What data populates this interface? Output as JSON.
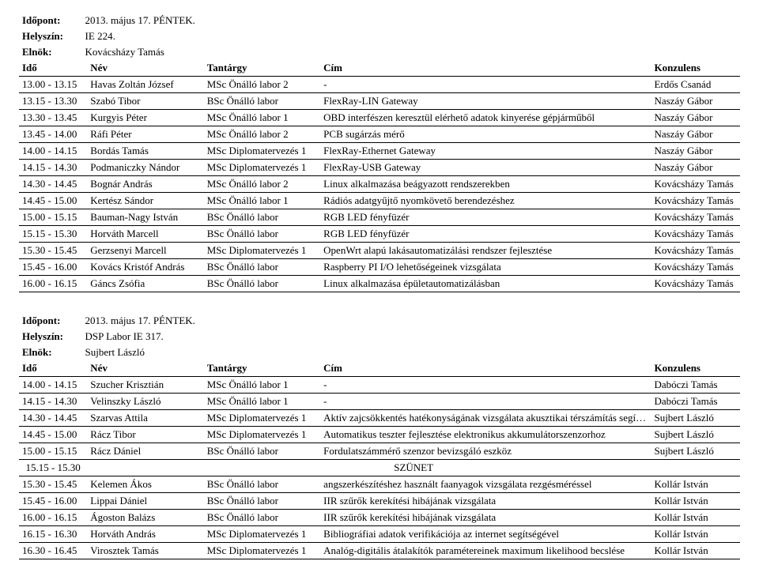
{
  "labels": {
    "idopont": "Időpont:",
    "helyszin": "Helyszín:",
    "elnok": "Elnök:",
    "ido_h": "Idő",
    "nev_h": "Név",
    "tantargy_h": "Tantárgy",
    "cim_h": "Cím",
    "konzulens_h": "Konzulens",
    "szunet": "SZÜNET"
  },
  "sessions": [
    {
      "idopont": "2013. május 17. PÉNTEK.",
      "helyszin": "IE 224.",
      "elnok": "Kovácsházy Tamás",
      "rows": [
        {
          "ido": "13.00 - 13.15",
          "nev": "Havas Zoltán József",
          "tantargy": "MSc Önálló labor 2",
          "cim": "-",
          "konzulens": "Erdős Csanád"
        },
        {
          "ido": "13.15 - 13.30",
          "nev": "Szabó Tibor",
          "tantargy": "BSc Önálló labor",
          "cim": "FlexRay-LIN Gateway",
          "konzulens": "Naszáy Gábor"
        },
        {
          "ido": "13.30 - 13.45",
          "nev": "Kurgyis Péter",
          "tantargy": "MSc Önálló labor 1",
          "cim": "OBD interfészen keresztül elérhető adatok kinyerése gépjárműből",
          "konzulens": "Naszáy Gábor"
        },
        {
          "ido": "13.45 - 14.00",
          "nev": "Ráfi Péter",
          "tantargy": "MSc Önálló labor 2",
          "cim": "PCB sugárzás mérő",
          "konzulens": "Naszáy Gábor"
        },
        {
          "ido": "14.00 - 14.15",
          "nev": "Bordás Tamás",
          "tantargy": "MSc Diplomatervezés 1",
          "cim": "FlexRay-Ethernet Gateway",
          "konzulens": "Naszáy Gábor"
        },
        {
          "ido": "14.15 - 14.30",
          "nev": "Podmaniczky Nándor",
          "tantargy": "MSc Diplomatervezés 1",
          "cim": "FlexRay-USB Gateway",
          "konzulens": "Naszáy Gábor"
        },
        {
          "ido": "14.30 - 14.45",
          "nev": "Bognár András",
          "tantargy": "MSc Önálló labor 2",
          "cim": "Linux alkalmazása beágyazott rendszerekben",
          "konzulens": "Kovácsházy Tamás"
        },
        {
          "ido": "14.45 - 15.00",
          "nev": "Kertész Sándor",
          "tantargy": "MSc Önálló labor 1",
          "cim": "Rádiós adatgyűjtő nyomkövető berendezéshez",
          "konzulens": "Kovácsházy Tamás"
        },
        {
          "ido": "15.00 - 15.15",
          "nev": "Bauman-Nagy István",
          "tantargy": "BSc Önálló labor",
          "cim": "RGB LED fényfüzér",
          "konzulens": "Kovácsházy Tamás"
        },
        {
          "ido": "15.15 - 15.30",
          "nev": "Horváth Marcell",
          "tantargy": "BSc Önálló labor",
          "cim": "RGB LED fényfüzér",
          "konzulens": "Kovácsházy Tamás"
        },
        {
          "ido": "15.30 - 15.45",
          "nev": "Gerzsenyi Marcell",
          "tantargy": "MSc Diplomatervezés 1",
          "cim": "OpenWrt alapú lakásautomatizálási rendszer fejlesztése",
          "konzulens": "Kovácsházy Tamás"
        },
        {
          "ido": "15.45 - 16.00",
          "nev": "Kovács Kristóf András",
          "tantargy": "BSc Önálló labor",
          "cim": "Raspberry PI I/O lehetőségeinek vizsgálata",
          "konzulens": "Kovácsházy Tamás"
        },
        {
          "ido": "16.00 - 16.15",
          "nev": "Gáncs Zsófia",
          "tantargy": "BSc Önálló labor",
          "cim": "Linux alkalmazása épületautomatizálásban",
          "konzulens": "Kovácsházy Tamás"
        }
      ]
    },
    {
      "idopont": "2013. május 17. PÉNTEK.",
      "helyszin": "DSP Labor IE 317.",
      "elnok": "Sujbert László",
      "rows": [
        {
          "ido": "14.00 - 14.15",
          "nev": "Szucher Krisztián",
          "tantargy": "MSc Önálló labor 1",
          "cim": "-",
          "konzulens": "Dabóczi Tamás"
        },
        {
          "ido": "14.15 - 14.30",
          "nev": "Velinszky László",
          "tantargy": "MSc Önálló labor 1",
          "cim": "-",
          "konzulens": "Dabóczi Tamás"
        },
        {
          "ido": "14.30 - 14.45",
          "nev": "Szarvas Attila",
          "tantargy": "MSc Diplomatervezés 1",
          "cim": "Aktív zajcsökkentés hatékonyságának vizsgálata akusztikai térszámítás segítségével",
          "konzulens": "Sujbert László"
        },
        {
          "ido": "14.45 - 15.00",
          "nev": "Rácz Tibor",
          "tantargy": "MSc Diplomatervezés 1",
          "cim": "Automatikus teszter fejlesztése elektronikus akkumulátorszenzorhoz",
          "konzulens": "Sujbert László"
        },
        {
          "ido": "15.00 - 15.15",
          "nev": "Rácz Dániel",
          "tantargy": "BSc Önálló labor",
          "cim": "Fordulatszámmérő szenzor bevizsgáló eszköz",
          "konzulens": "Sujbert László"
        },
        {
          "ido": "15.15 - 15.30",
          "szunet": true
        },
        {
          "ido": "15.30 - 15.45",
          "nev": "Kelemen Ákos",
          "tantargy": "BSc Önálló labor",
          "cim": "angszerkészítéshez használt faanyagok vizsgálata rezgésméréssel",
          "konzulens": "Kollár István"
        },
        {
          "ido": "15.45 - 16.00",
          "nev": "Lippai Dániel",
          "tantargy": "BSc Önálló labor",
          "cim": "IIR szűrők kerekítési hibájának vizsgálata",
          "konzulens": "Kollár István"
        },
        {
          "ido": "16.00 - 16.15",
          "nev": "Ágoston Balázs",
          "tantargy": "BSc Önálló labor",
          "cim": "IIR szűrők kerekítési hibájának vizsgálata",
          "konzulens": "Kollár István"
        },
        {
          "ido": "16.15 - 16.30",
          "nev": "Horváth András",
          "tantargy": "MSc Diplomatervezés 1",
          "cim": "Bibliográfiai adatok verifikációja az internet segítségével",
          "konzulens": "Kollár István"
        },
        {
          "ido": "16.30 - 16.45",
          "nev": "Virosztek Tamás",
          "tantargy": "MSc Diplomatervezés 1",
          "cim": "Analóg-digitális átalakítók paramétereinek maximum likelihood becslése",
          "konzulens": "Kollár István"
        }
      ]
    }
  ]
}
